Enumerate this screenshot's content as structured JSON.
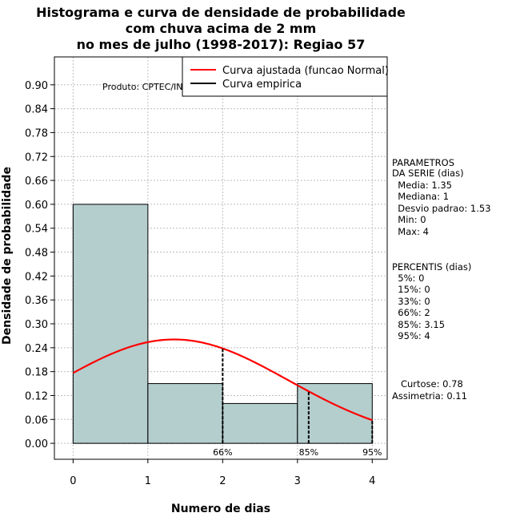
{
  "chart_data": {
    "type": "bar",
    "title": [
      "Histograma e curva de densidade de probabilidade",
      "com chuva acima de 2 mm",
      "no mes de julho (1998-2017): Regiao 57"
    ],
    "xlabel": "Numero de dias",
    "ylabel": "Densidade de probabilidade",
    "xlim": [
      -0.25,
      4.2
    ],
    "ylim": [
      -0.04,
      0.97
    ],
    "x_ticks": [
      "0",
      "1",
      "2",
      "3",
      "4"
    ],
    "y_ticks": [
      "0.00",
      "0.06",
      "0.12",
      "0.18",
      "0.24",
      "0.30",
      "0.36",
      "0.42",
      "0.48",
      "0.54",
      "0.60",
      "0.66",
      "0.72",
      "0.78",
      "0.84",
      "0.90"
    ],
    "bins": [
      {
        "x0": 0,
        "x1": 1,
        "density": 0.6
      },
      {
        "x0": 1,
        "x1": 2,
        "density": 0.15
      },
      {
        "x0": 2,
        "x1": 3,
        "density": 0.1
      },
      {
        "x0": 3,
        "x1": 4,
        "density": 0.15
      }
    ],
    "normal_curve": {
      "mean": 1.35,
      "sd": 1.53
    },
    "percentile_lines": [
      {
        "label": "66%",
        "x": 2
      },
      {
        "label": "85%",
        "x": 3.15
      },
      {
        "label": "95%",
        "x": 4
      }
    ],
    "legend": [
      {
        "label": "Curva ajustada (funcao Normal)",
        "color": "#ff0000"
      },
      {
        "label": "Curva empirica",
        "color": "#000000"
      }
    ],
    "credit": "Produto: CPTEC/INPE",
    "colors": {
      "bar": "#b4cdcd",
      "curve": "#ff0000",
      "grid": "#bebebe"
    }
  },
  "side_panel": {
    "params": [
      "PARAMETROS",
      "DA SERIE (dias)",
      "  Media: 1.35",
      "  Mediana: 1",
      "  Desvio padrao: 1.53",
      "  Min: 0",
      "  Max: 4"
    ],
    "percentis": [
      "PERCENTIS (dias)",
      "  5%: 0",
      "  15%: 0",
      "  33%: 0",
      "  66%: 2",
      "  85%: 3.15",
      "  95%: 4"
    ],
    "shape": [
      "   Curtose: 0.78",
      "Assimetria: 0.11"
    ]
  }
}
